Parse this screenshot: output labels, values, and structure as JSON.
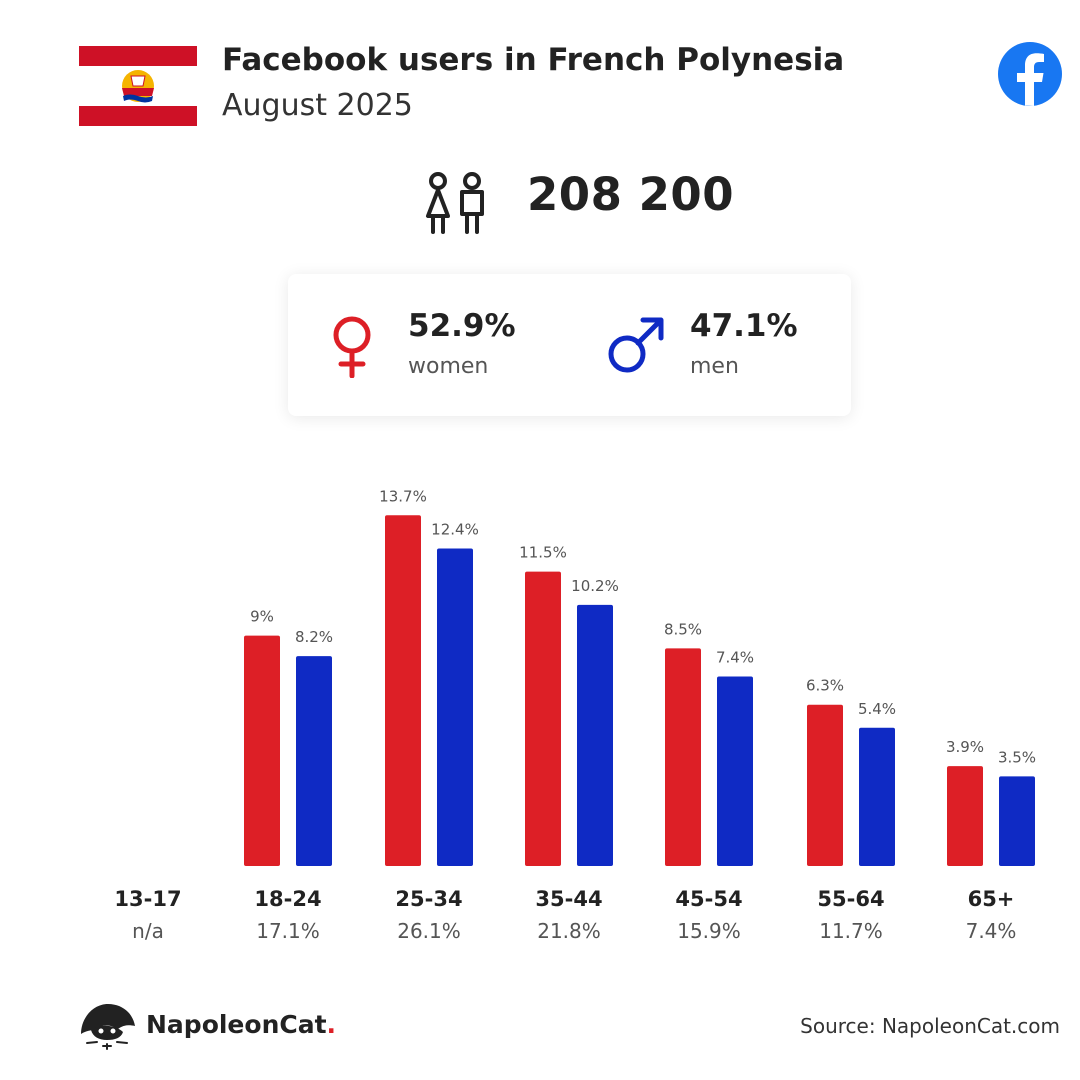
{
  "header": {
    "title": "Facebook users in French Polynesia",
    "subtitle": "August 2025"
  },
  "total": {
    "value": "208 200"
  },
  "gender": {
    "women_pct": "52.9%",
    "women_label": "women",
    "men_pct": "47.1%",
    "men_label": "men"
  },
  "footer": {
    "logo": "NapoleonCat",
    "logo_dot": ".",
    "source": "Source: NapoleonCat.com"
  },
  "colors": {
    "women": "#dd1f26",
    "men": "#0f2ac4",
    "facebook": "#1877f2"
  },
  "icons": [
    "flag-icon",
    "facebook-icon",
    "people-icon",
    "female-symbol-icon",
    "male-symbol-icon",
    "napoleoncat-logo-icon"
  ],
  "chart_data": {
    "type": "bar",
    "categories": [
      "13-17",
      "18-24",
      "25-34",
      "35-44",
      "45-54",
      "55-64",
      "65+"
    ],
    "category_shares": [
      "n/a",
      "17.1%",
      "26.1%",
      "21.8%",
      "15.9%",
      "11.7%",
      "7.4%"
    ],
    "series": [
      {
        "name": "women",
        "values": [
          null,
          9,
          13.7,
          11.5,
          8.5,
          6.3,
          3.9
        ],
        "labels": [
          "",
          "9%",
          "13.7%",
          "11.5%",
          "8.5%",
          "6.3%",
          "3.9%"
        ],
        "color": "#dd1f26"
      },
      {
        "name": "men",
        "values": [
          null,
          8.2,
          12.4,
          10.2,
          7.4,
          5.4,
          3.5
        ],
        "labels": [
          "",
          "8.2%",
          "12.4%",
          "10.2%",
          "7.4%",
          "5.4%",
          "3.5%"
        ],
        "color": "#0f2ac4"
      }
    ],
    "grid": false
  }
}
